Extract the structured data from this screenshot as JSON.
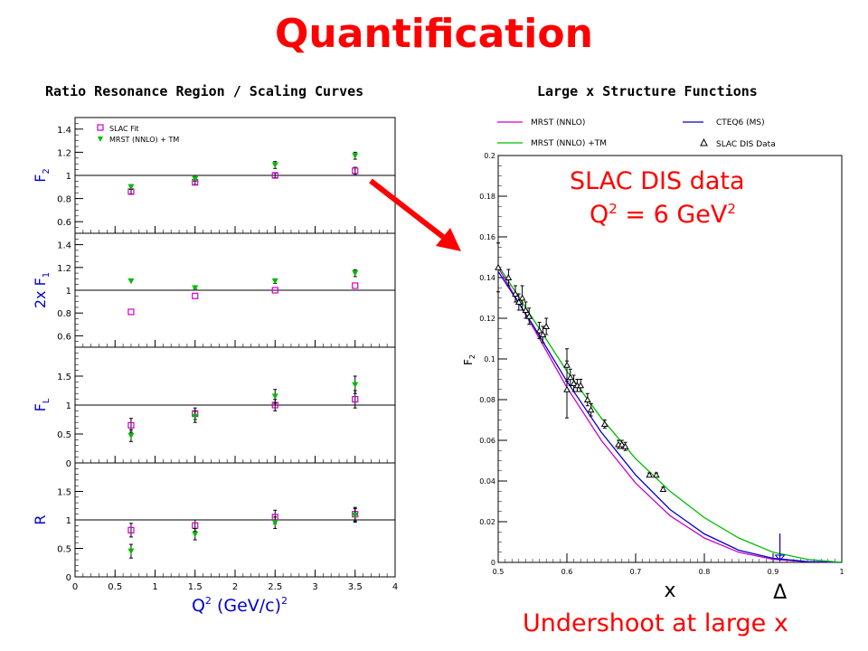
{
  "slide": {
    "title": "Quantification",
    "left_heading": "Ratio Resonance Region / Scaling Curves",
    "right_heading": "Large x Structure Functions",
    "annotation_data": "SLAC DIS data",
    "annotation_q2": "Q",
    "annotation_q2_sup": "2",
    "annotation_q2_value": " = 6 GeV",
    "annotation_q2_value_sup": "2",
    "annotation_bottom": "Undershoot at large x",
    "colors": {
      "title": "#ff0000",
      "annotation": "#ff0000",
      "arrow": "#ff0000"
    }
  },
  "chart_data": [
    {
      "type": "scatter",
      "panel": "F2",
      "ylabel": "F",
      "ylabel_sub": "2",
      "ylim": [
        0.5,
        1.5
      ],
      "yticks": [
        "0.6",
        "0.8",
        "1",
        "1.2",
        "1.4"
      ],
      "xlim": [
        0,
        4
      ],
      "reference_line": 1,
      "legend": {
        "placement": "top-left",
        "entries": [
          {
            "label": "SLAC Fit",
            "marker": "open-square",
            "color": "#cc00cc"
          },
          {
            "label": "MRST (NNLO) + TM",
            "marker": "filled-triangle-down",
            "color": "#00bb00"
          }
        ]
      },
      "series": [
        {
          "name": "SLAC Fit",
          "marker": "open-square",
          "color": "#cc00cc",
          "x": [
            0.7,
            1.5,
            2.5,
            3.5
          ],
          "y": [
            0.86,
            0.94,
            1.0,
            1.04
          ],
          "err": [
            0.02,
            0.02,
            0.02,
            0.03
          ]
        },
        {
          "name": "MRST (NNLO) + TM",
          "marker": "filled-triangle-down",
          "color": "#00bb00",
          "x": [
            0.7,
            1.5,
            2.5,
            3.5
          ],
          "y": [
            0.9,
            0.97,
            1.09,
            1.17
          ],
          "err": [
            0.02,
            0.02,
            0.03,
            0.03
          ]
        }
      ]
    },
    {
      "type": "scatter",
      "panel": "2xF1",
      "ylabel": "2x F",
      "ylabel_sub": "1",
      "ylim": [
        0.5,
        1.5
      ],
      "yticks": [
        "0.6",
        "0.8",
        "1",
        "1.2",
        "1.4"
      ],
      "xlim": [
        0,
        4
      ],
      "reference_line": 1,
      "series": [
        {
          "name": "SLAC Fit",
          "marker": "open-square",
          "color": "#cc00cc",
          "x": [
            0.7,
            1.5,
            2.5,
            3.5
          ],
          "y": [
            0.81,
            0.95,
            1.0,
            1.04
          ],
          "err": [
            0,
            0,
            0,
            0
          ]
        },
        {
          "name": "MRST (NNLO) + TM",
          "marker": "filled-triangle-down",
          "color": "#00bb00",
          "x": [
            0.7,
            1.5,
            2.5,
            3.5
          ],
          "y": [
            1.08,
            1.02,
            1.08,
            1.15
          ],
          "err": [
            0,
            0.01,
            0.02,
            0.03
          ]
        }
      ]
    },
    {
      "type": "scatter",
      "panel": "FL",
      "ylabel": "F",
      "ylabel_sub": "L",
      "ylim": [
        0,
        2
      ],
      "yticks": [
        "0",
        "0.5",
        "1",
        "1.5"
      ],
      "xlim": [
        0,
        4
      ],
      "reference_line": 1,
      "series": [
        {
          "name": "SLAC Fit",
          "marker": "open-square",
          "color": "#cc00cc",
          "x": [
            0.7,
            1.5,
            2.5,
            3.5
          ],
          "y": [
            0.65,
            0.85,
            1.0,
            1.1
          ],
          "err": [
            0.12,
            0.1,
            0.1,
            0.15
          ]
        },
        {
          "name": "MRST (NNLO) + TM",
          "marker": "filled-triangle-down",
          "color": "#00bb00",
          "x": [
            0.7,
            1.5,
            2.5,
            3.5
          ],
          "y": [
            0.47,
            0.8,
            1.15,
            1.35
          ],
          "err": [
            0.1,
            0.1,
            0.12,
            0.15
          ]
        }
      ]
    },
    {
      "type": "scatter",
      "panel": "R",
      "ylabel": "R",
      "ylabel_sub": "",
      "ylim": [
        0,
        2
      ],
      "yticks": [
        "0",
        "0.5",
        "1",
        "1.5"
      ],
      "xlim": [
        0,
        4
      ],
      "xticks": [
        "0",
        "0.5",
        "1",
        "1.5",
        "2",
        "2.5",
        "3",
        "3.5",
        "4"
      ],
      "xlabel": "Q",
      "xlabel_sup": "2",
      "xlabel_rest": " (GeV/c)",
      "xlabel_rest_sup": "2",
      "reference_line": 1,
      "series": [
        {
          "name": "SLAC Fit",
          "marker": "open-square",
          "color": "#cc00cc",
          "x": [
            0.7,
            1.5,
            2.5,
            3.5
          ],
          "y": [
            0.82,
            0.9,
            1.05,
            1.1
          ],
          "err": [
            0.12,
            0.1,
            0.12,
            0.12
          ]
        },
        {
          "name": "MRST (NNLO) + TM",
          "marker": "filled-triangle-down",
          "color": "#00bb00",
          "x": [
            0.7,
            1.5,
            2.5,
            3.5
          ],
          "y": [
            0.45,
            0.75,
            0.95,
            1.08
          ],
          "err": [
            0.12,
            0.1,
            0.1,
            0.12
          ]
        }
      ]
    },
    {
      "type": "line",
      "panel": "large-x",
      "ylabel": "F",
      "ylabel_sub": "2",
      "xlabel": "x",
      "xlim": [
        0.5,
        1
      ],
      "ylim": [
        0,
        0.2
      ],
      "xticks": [
        "0.5",
        "0.6",
        "0.7",
        "0.8",
        "0.9",
        "1"
      ],
      "yticks": [
        "0",
        "0.02",
        "0.04",
        "0.06",
        "0.08",
        "0.1",
        "0.12",
        "0.14",
        "0.16",
        "0.18",
        "0.2"
      ],
      "legend": {
        "placement": "top",
        "entries": [
          {
            "label": "MRST (NNLO)",
            "style": "line",
            "color": "#cc00cc"
          },
          {
            "label": "CTEQ6 (MS)",
            "style": "line",
            "color": "#0000cc"
          },
          {
            "label": "MRST (NNLO) +TM",
            "style": "line",
            "color": "#00bb00"
          },
          {
            "label": "SLAC DIS Data",
            "style": "open-triangle",
            "color": "#000000"
          }
        ]
      },
      "series": [
        {
          "name": "MRST (NNLO)",
          "color": "#cc00cc",
          "x": [
            0.5,
            0.55,
            0.6,
            0.65,
            0.7,
            0.75,
            0.8,
            0.85,
            0.9,
            0.95,
            1.0
          ],
          "y": [
            0.145,
            0.116,
            0.086,
            0.06,
            0.039,
            0.023,
            0.012,
            0.005,
            0.0015,
            0.0003,
            0
          ]
        },
        {
          "name": "CTEQ6 (MS)",
          "color": "#0000cc",
          "x": [
            0.5,
            0.55,
            0.6,
            0.65,
            0.7,
            0.75,
            0.8,
            0.85,
            0.9,
            0.95,
            1.0
          ],
          "y": [
            0.143,
            0.117,
            0.089,
            0.064,
            0.043,
            0.026,
            0.014,
            0.006,
            0.002,
            0.0004,
            0
          ]
        },
        {
          "name": "MRST (NNLO) +TM",
          "color": "#00bb00",
          "x": [
            0.5,
            0.55,
            0.6,
            0.65,
            0.7,
            0.75,
            0.8,
            0.85,
            0.9,
            0.95,
            1.0
          ],
          "y": [
            0.146,
            0.12,
            0.094,
            0.071,
            0.051,
            0.035,
            0.022,
            0.012,
            0.005,
            0.0015,
            0
          ]
        },
        {
          "name": "SLAC DIS Data",
          "marker": "open-triangle",
          "color": "#000000",
          "x": [
            0.5,
            0.515,
            0.525,
            0.53,
            0.535,
            0.54,
            0.545,
            0.56,
            0.565,
            0.57,
            0.6,
            0.6,
            0.605,
            0.61,
            0.615,
            0.62,
            0.63,
            0.635,
            0.655,
            0.675,
            0.68,
            0.685,
            0.72,
            0.73,
            0.74
          ],
          "y": [
            0.145,
            0.14,
            0.132,
            0.128,
            0.13,
            0.124,
            0.121,
            0.114,
            0.112,
            0.116,
            0.085,
            0.097,
            0.091,
            0.088,
            0.087,
            0.087,
            0.08,
            0.075,
            0.068,
            0.058,
            0.058,
            0.057,
            0.043,
            0.043,
            0.036
          ],
          "err": [
            0.012,
            0.004,
            0.004,
            0.004,
            0.006,
            0.004,
            0.004,
            0.004,
            0.004,
            0.004,
            0.014,
            0.008,
            0.004,
            0.004,
            0.003,
            0.003,
            0.003,
            0.003,
            0.002,
            0.002,
            0.002,
            0.002,
            0.001,
            0.001,
            0.001
          ]
        }
      ],
      "markers": [
        {
          "label": "Δ",
          "x": 0.91,
          "description": "large-x mark"
        }
      ]
    }
  ]
}
